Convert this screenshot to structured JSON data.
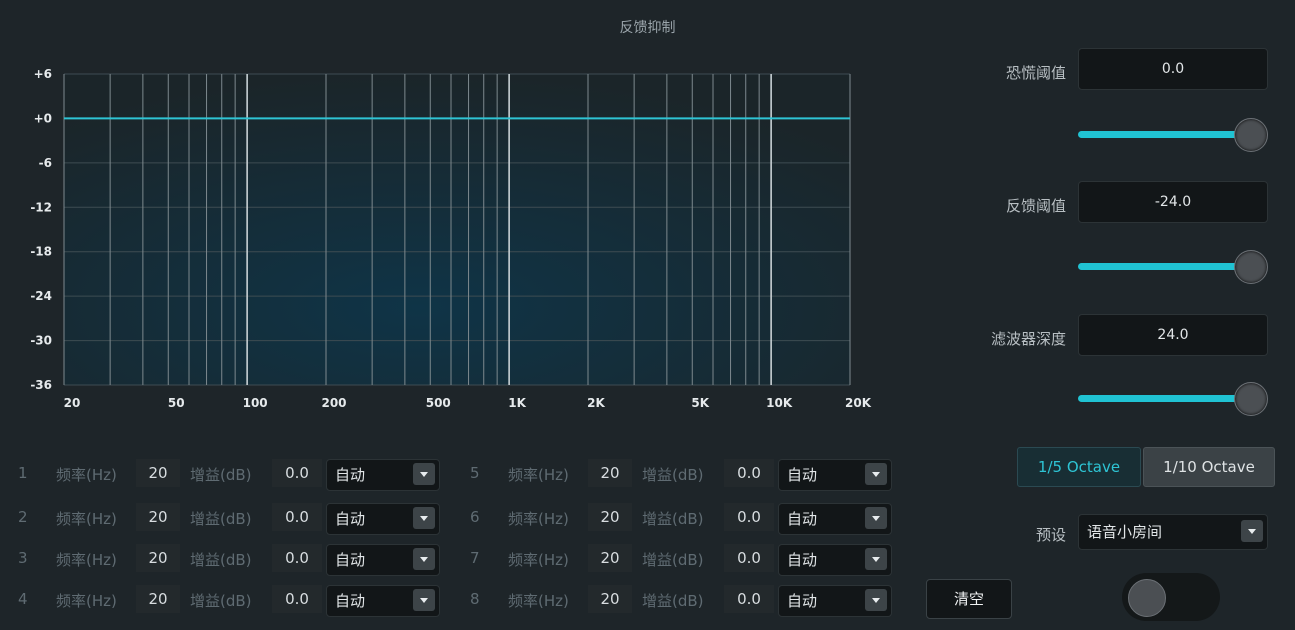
{
  "window": {
    "title": "反馈抑制"
  },
  "chart_data": {
    "type": "line",
    "title": "",
    "x_scale": "log",
    "xlim": [
      20,
      20000
    ],
    "ylim": [
      -36,
      6
    ],
    "y_ticks": [
      6,
      0,
      -6,
      -12,
      -18,
      -24,
      -30,
      -36
    ],
    "y_tick_labels": [
      "+6",
      "+0",
      "-6",
      "-12",
      "-18",
      "-24",
      "-30",
      "-36"
    ],
    "x_ticks": [
      20,
      50,
      100,
      200,
      500,
      1000,
      2000,
      5000,
      10000,
      20000
    ],
    "x_tick_labels": [
      "20",
      "50",
      "100",
      "200",
      "500",
      "1K",
      "2K",
      "5K",
      "10K",
      "20K"
    ],
    "grid": true,
    "series": [
      {
        "x": [
          20,
          20000
        ],
        "y": [
          0,
          0
        ],
        "color": "#2ec4d4"
      }
    ]
  },
  "filters": [
    {
      "index": "1",
      "freq_label": "频率(Hz)",
      "freq": "20",
      "gain_label": "增益(dB)",
      "gain": "0.0",
      "mode": "自动"
    },
    {
      "index": "2",
      "freq_label": "频率(Hz)",
      "freq": "20",
      "gain_label": "增益(dB)",
      "gain": "0.0",
      "mode": "自动"
    },
    {
      "index": "3",
      "freq_label": "频率(Hz)",
      "freq": "20",
      "gain_label": "增益(dB)",
      "gain": "0.0",
      "mode": "自动"
    },
    {
      "index": "4",
      "freq_label": "频率(Hz)",
      "freq": "20",
      "gain_label": "增益(dB)",
      "gain": "0.0",
      "mode": "自动"
    },
    {
      "index": "5",
      "freq_label": "频率(Hz)",
      "freq": "20",
      "gain_label": "增益(dB)",
      "gain": "0.0",
      "mode": "自动"
    },
    {
      "index": "6",
      "freq_label": "频率(Hz)",
      "freq": "20",
      "gain_label": "增益(dB)",
      "gain": "0.0",
      "mode": "自动"
    },
    {
      "index": "7",
      "freq_label": "频率(Hz)",
      "freq": "20",
      "gain_label": "增益(dB)",
      "gain": "0.0",
      "mode": "自动"
    },
    {
      "index": "8",
      "freq_label": "频率(Hz)",
      "freq": "20",
      "gain_label": "增益(dB)",
      "gain": "0.0",
      "mode": "自动"
    }
  ],
  "params": {
    "panic": {
      "label": "恐慌阈值",
      "value": "0.0",
      "slider_level": 1.0
    },
    "feedback": {
      "label": "反馈阈值",
      "value": "-24.0",
      "slider_level": 1.0
    },
    "depth": {
      "label": "滤波器深度",
      "value": "24.0",
      "slider_level": 1.0
    }
  },
  "octave": {
    "option1": "1/5 Octave",
    "option2": "1/10 Octave",
    "selected": "1/5 Octave"
  },
  "preset": {
    "label": "预设",
    "value": "语音小房间"
  },
  "clear_button": "清空",
  "power_toggle": {
    "on": false
  },
  "colors": {
    "accent": "#20c3d3",
    "background": "#1e2529",
    "curve": "#2ec4d4"
  }
}
